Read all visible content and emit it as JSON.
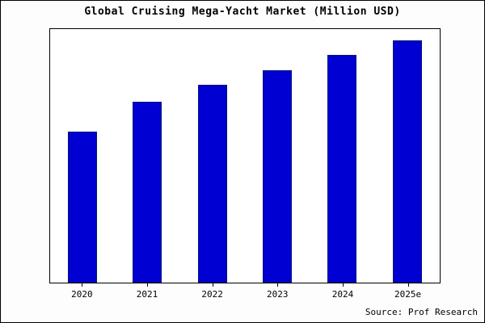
{
  "chart_data": {
    "type": "bar",
    "title": "Global Cruising Mega-Yacht Market (Million USD)",
    "categories": [
      "2020",
      "2021",
      "2022",
      "2023",
      "2024",
      "2025e"
    ],
    "values": [
      187,
      224,
      245,
      263,
      282,
      300
    ],
    "xlabel": "",
    "ylabel": "",
    "ylim": [
      0,
      314
    ],
    "grid": false,
    "legend": "none",
    "bar_color": "#0000d2",
    "bar_border_color": "#00137a",
    "note": "y-axis has no tick labels; values are relative estimates"
  },
  "source": {
    "label": "Source: Prof Research"
  }
}
